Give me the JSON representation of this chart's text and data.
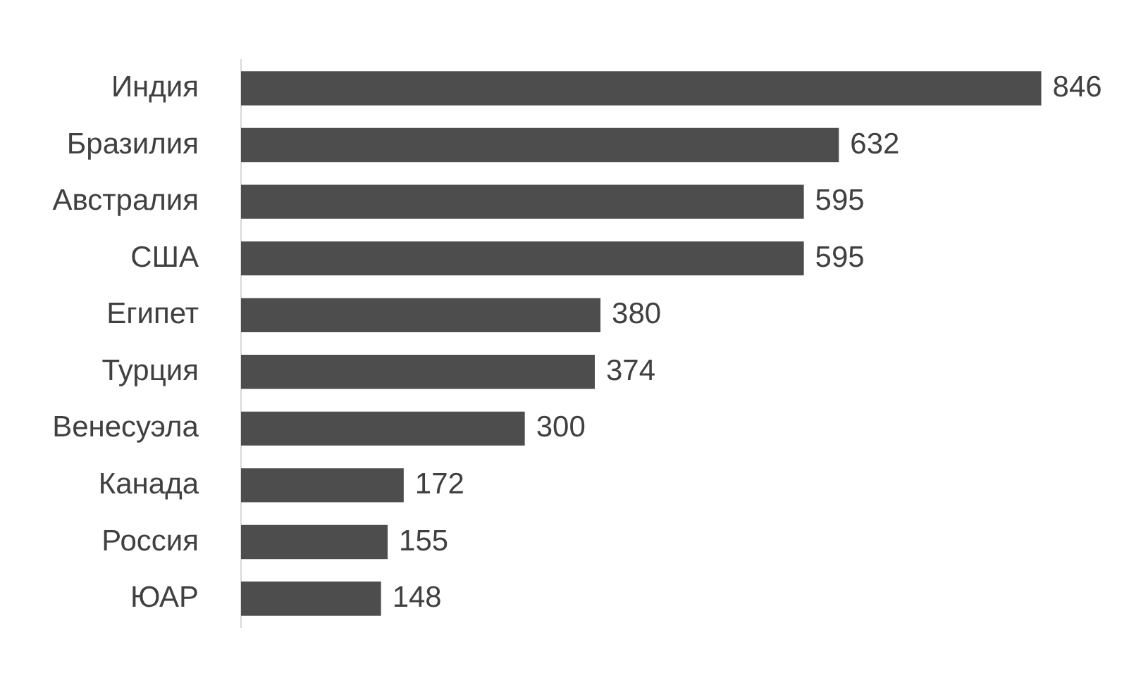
{
  "chart_data": {
    "type": "bar",
    "orientation": "horizontal",
    "categories": [
      "Индия",
      "Бразилия",
      "Австралия",
      "США",
      "Египет",
      "Турция",
      "Венесуэла",
      "Канада",
      "Россия",
      "ЮАР"
    ],
    "values": [
      846,
      632,
      595,
      595,
      380,
      374,
      300,
      172,
      155,
      148
    ],
    "color": "#4d4d4d",
    "data_labels": true,
    "grid": false,
    "legend": false,
    "tick_labels": "y"
  }
}
